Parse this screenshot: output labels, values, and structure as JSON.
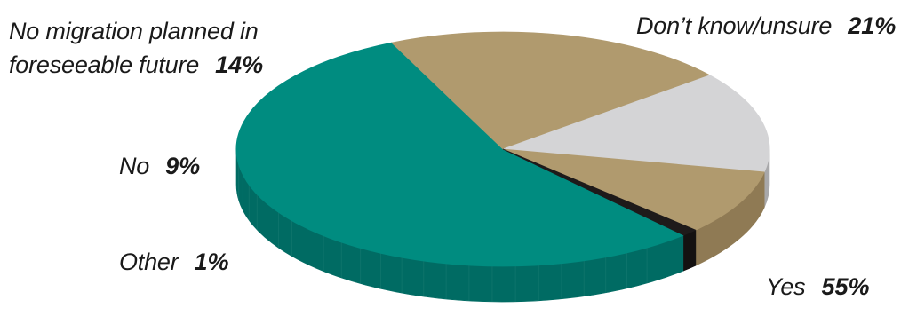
{
  "chart_data": {
    "type": "pie",
    "slices": [
      {
        "label": "Yes",
        "value": 55,
        "value_label": "55%",
        "color": "#008c80",
        "side_color": "#006b63"
      },
      {
        "label": "Don’t know/unsure",
        "value": 21,
        "value_label": "21%",
        "color": "#b09a6e",
        "side_color": "#8c7650"
      },
      {
        "label": "No migration planned in foreseeable future",
        "label_lines": [
          "No migration planned in",
          "foreseeable future"
        ],
        "value": 14,
        "value_label": "14%",
        "color": "#d4d4d6",
        "side_color": "#a8a8aa"
      },
      {
        "label": "No",
        "value": 9,
        "value_label": "9%",
        "color": "#b09a6e",
        "side_color": "#8f7a54"
      },
      {
        "label": "Other",
        "value": 1,
        "value_label": "1%",
        "color": "#1e1a1a",
        "side_color": "#141111"
      }
    ],
    "style": "3d-tilted"
  }
}
